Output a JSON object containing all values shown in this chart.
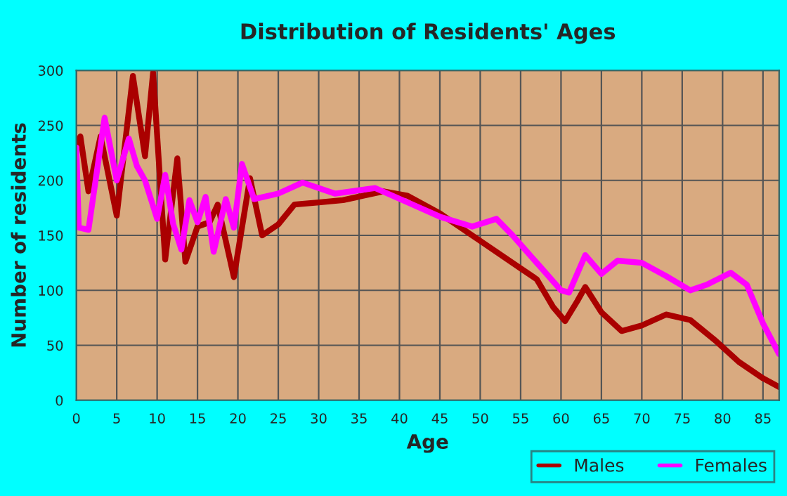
{
  "chart_data": {
    "type": "line",
    "title": "Distribution of Residents' Ages",
    "xlabel": "Age",
    "ylabel": "Number of residents",
    "xlim": [
      0,
      87
    ],
    "xticks": [
      0,
      5,
      10,
      15,
      20,
      25,
      30,
      35,
      40,
      45,
      50,
      55,
      60,
      65,
      70,
      75,
      80,
      85
    ],
    "ylim": [
      0,
      300
    ],
    "yticks": [
      0,
      50,
      100,
      150,
      200,
      250,
      300
    ],
    "grid": true,
    "legend": "bottom right",
    "marker": "none",
    "line_style": "solid",
    "series": [
      {
        "name": "Males",
        "color": "#aa0000",
        "x": [
          0,
          0.5,
          1.5,
          3,
          5,
          7,
          8.5,
          9.5,
          11,
          12.5,
          13.5,
          15,
          16.5,
          17.5,
          19.5,
          21.5,
          23,
          25,
          27,
          30,
          33,
          38,
          41,
          45,
          50,
          55,
          57,
          59,
          60.5,
          62,
          63,
          65,
          67.5,
          70,
          73,
          76,
          79,
          82,
          85,
          87
        ],
        "values": [
          233,
          240,
          190,
          240,
          168,
          295,
          222,
          298,
          128,
          220,
          126,
          158,
          162,
          178,
          112,
          202,
          150,
          160,
          178,
          180,
          182,
          190,
          186,
          170,
          145,
          120,
          110,
          85,
          72,
          90,
          103,
          80,
          63,
          68,
          78,
          73,
          55,
          35,
          20,
          12
        ]
      },
      {
        "name": "Females",
        "color": "#ff00ff",
        "x": [
          0,
          0.3,
          1.5,
          3.5,
          5,
          6.5,
          7.5,
          8.5,
          10,
          11,
          12,
          13,
          14,
          15,
          16,
          17,
          18.5,
          19.5,
          20.5,
          22,
          25,
          28,
          32,
          37,
          41,
          45,
          49,
          52,
          54,
          57,
          60,
          61,
          63,
          65,
          67,
          70,
          73,
          76,
          78,
          81,
          83,
          85,
          87
        ],
        "values": [
          230,
          157,
          155,
          257,
          200,
          238,
          213,
          200,
          165,
          205,
          160,
          137,
          182,
          162,
          185,
          135,
          183,
          157,
          215,
          183,
          188,
          198,
          188,
          193,
          180,
          167,
          158,
          165,
          150,
          125,
          100,
          98,
          132,
          115,
          127,
          125,
          113,
          100,
          105,
          116,
          105,
          70,
          42
        ]
      }
    ]
  }
}
